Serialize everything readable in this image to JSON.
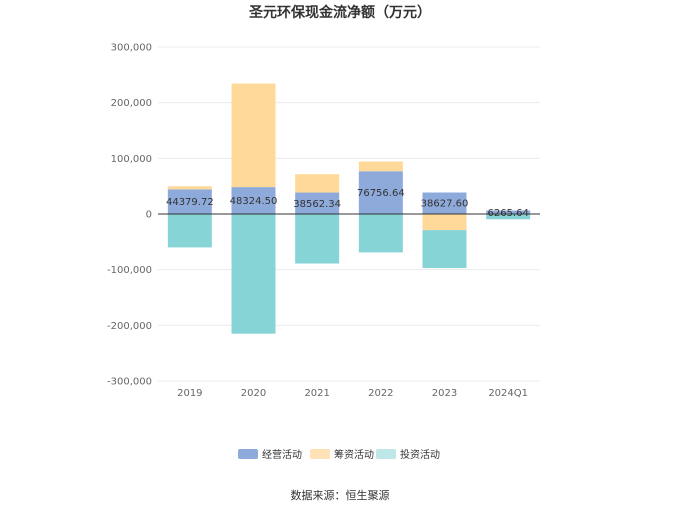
{
  "chart_data": {
    "type": "bar",
    "stacked": true,
    "title": "圣元环保现金流净额（万元）",
    "categories": [
      "2019",
      "2020",
      "2021",
      "2022",
      "2023",
      "2024Q1"
    ],
    "series": [
      {
        "name": "经营活动",
        "color": "#8eaadb",
        "values": [
          44379.72,
          48324.5,
          38562.34,
          76756.64,
          38627.6,
          6265.64
        ]
      },
      {
        "name": "筹资活动",
        "color": "#ffd99a",
        "values": [
          5500,
          186000,
          33000,
          17500,
          -29000,
          -500
        ]
      },
      {
        "name": "投资活动",
        "color": "#86d4d6",
        "values": [
          -60000,
          -215000,
          -89000,
          -69000,
          -68000,
          -9000
        ]
      }
    ],
    "data_labels": [
      "44379.72",
      "48324.50",
      "38562.34",
      "76756.64",
      "38627.60",
      "6265.64"
    ],
    "yticks": [
      "300,000",
      "200,000",
      "100,000",
      "0",
      "-100,000",
      "-200,000",
      "-300,000"
    ],
    "ylim": [
      -300000,
      300000
    ],
    "grid": true,
    "legend_position": "bottom",
    "xlabel": "",
    "ylabel": ""
  },
  "source_text": "数据来源：恒生聚源"
}
